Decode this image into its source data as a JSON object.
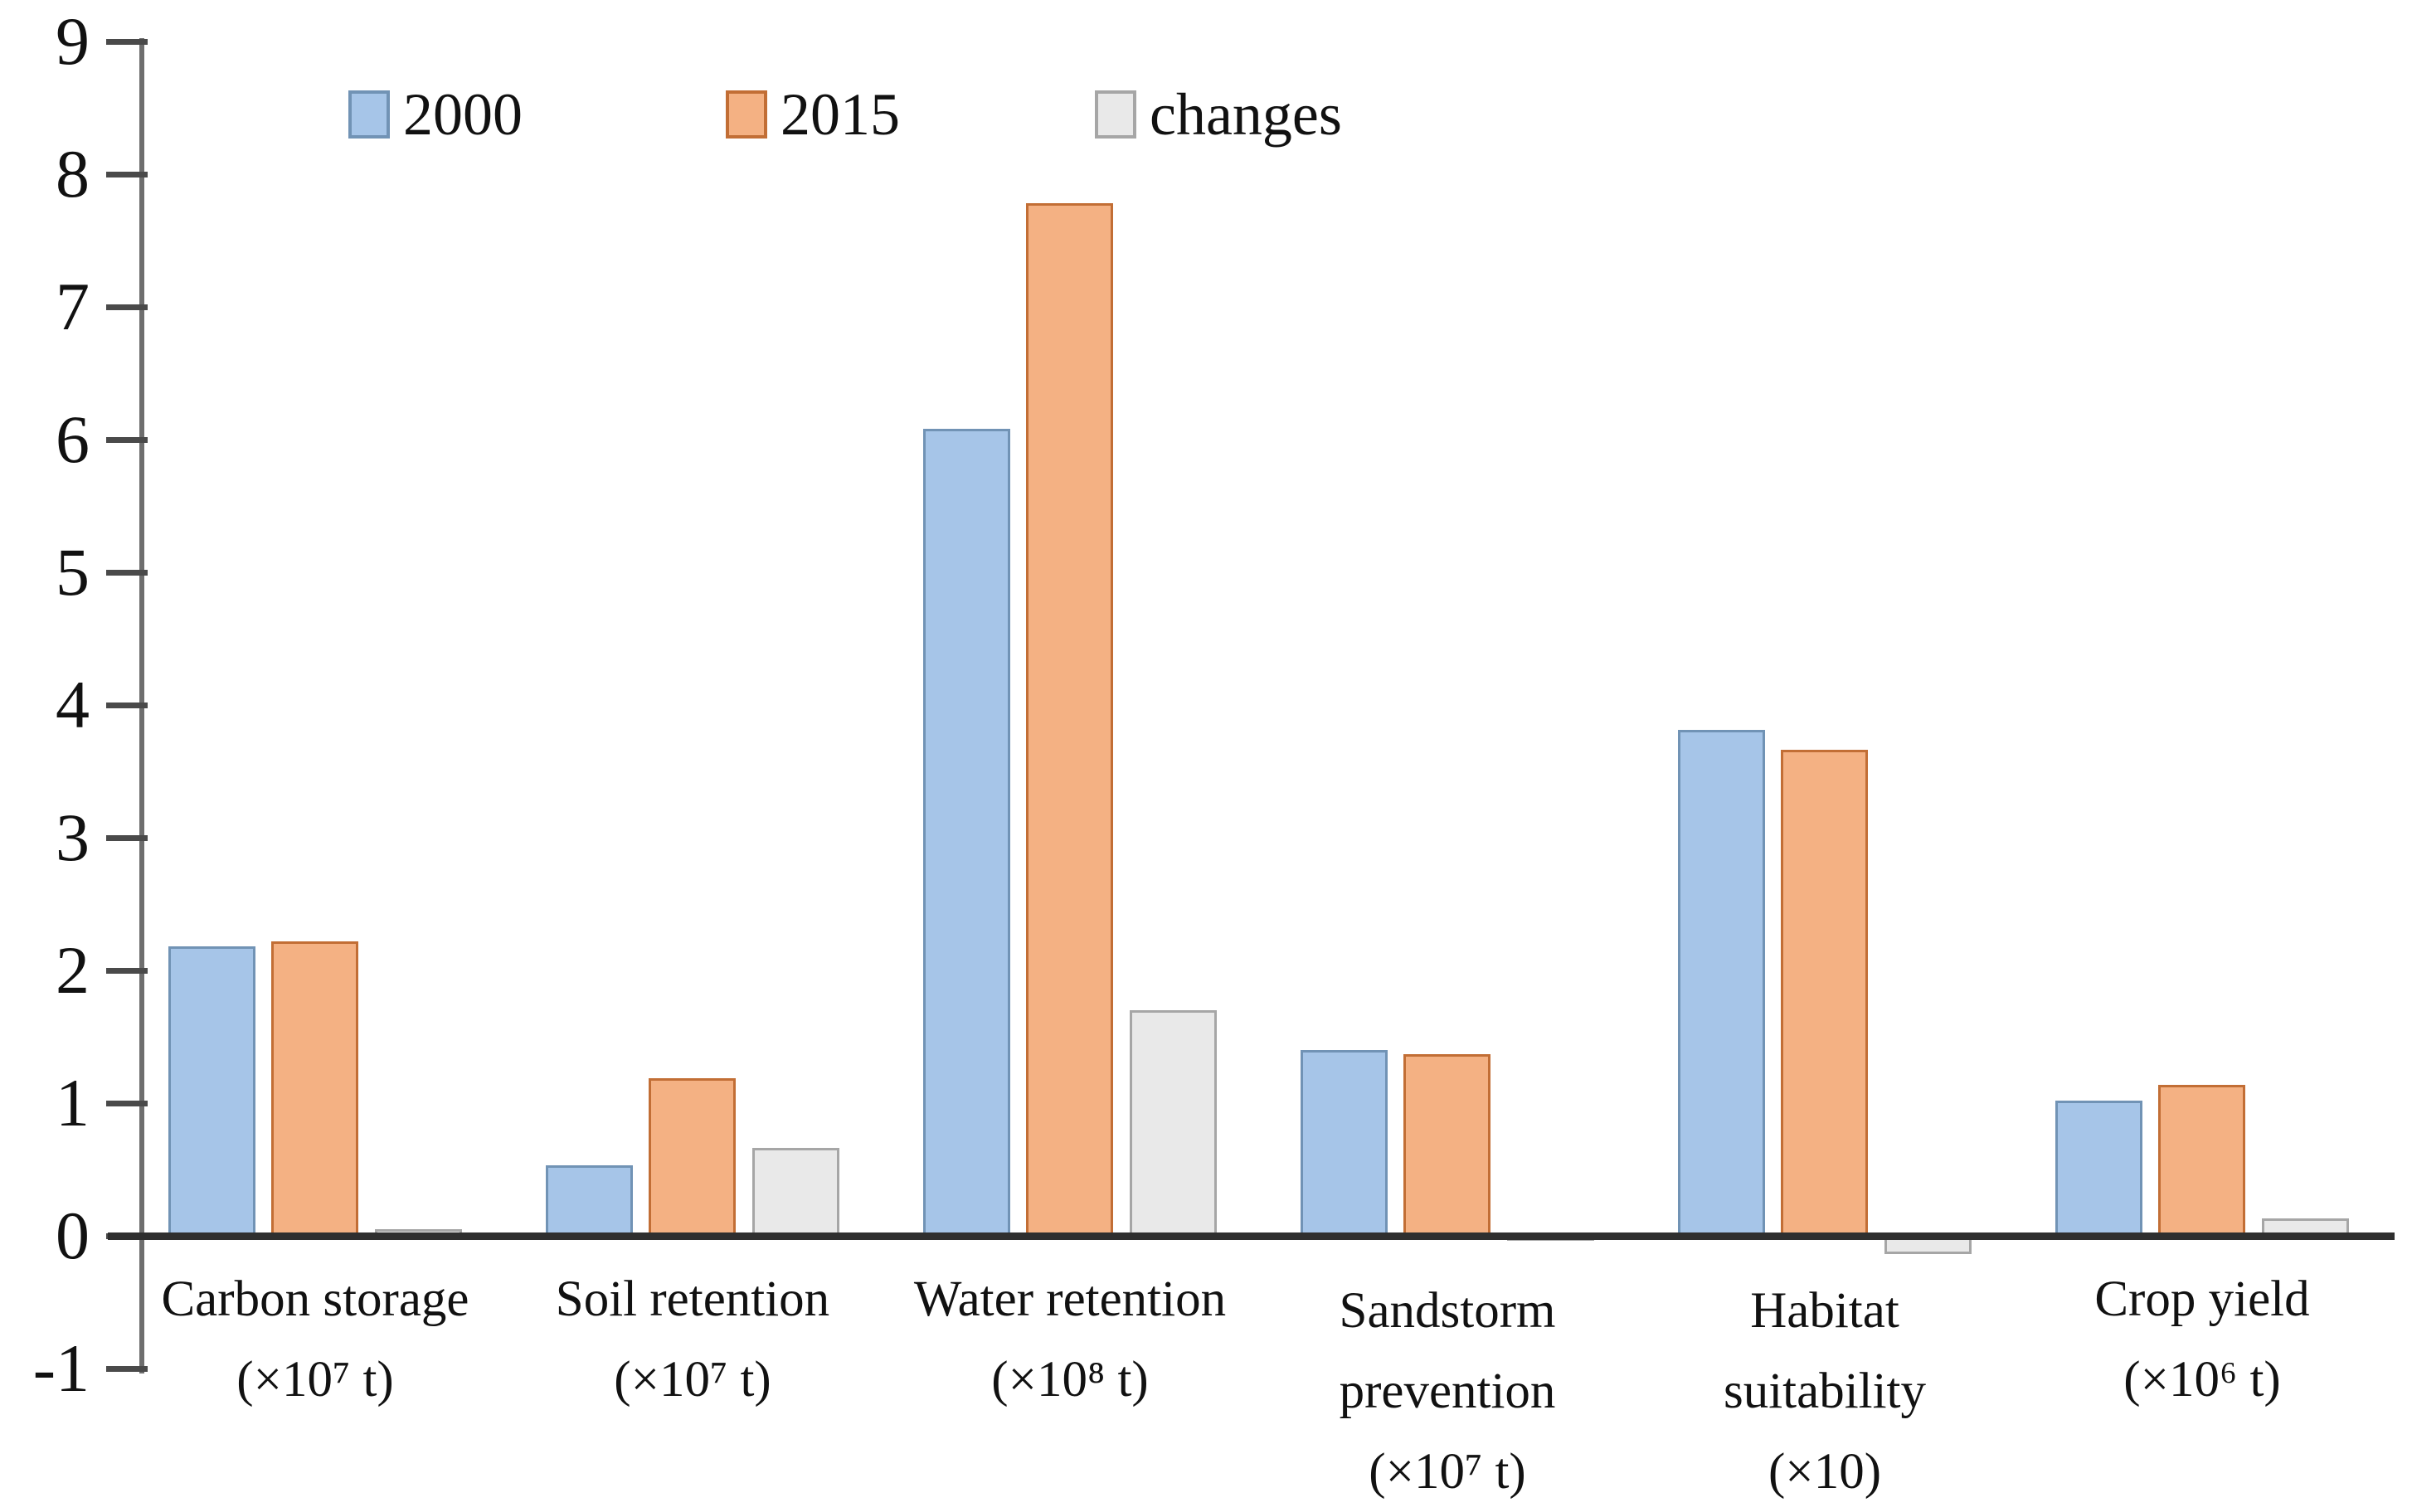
{
  "chart_data": {
    "type": "bar",
    "title": "",
    "xlabel": "",
    "ylabel": "",
    "categories": [
      "Carbon storage (×10⁷ t)",
      "Soil retention (×10⁷ t)",
      "Water retention (×10⁸ t)",
      "Sandstorm prevention (×10⁷ t)",
      "Habitat suitability (×10)",
      "Crop yield (×10⁶ t)"
    ],
    "category_label_lines": [
      [
        "Carbon storage",
        "(×10⁷ t)"
      ],
      [
        "Soil retention",
        "(×10⁷ t)"
      ],
      [
        "Water retention",
        "(×10⁸ t)"
      ],
      [
        "Sandstorm",
        "prevention",
        "(×10⁷ t)"
      ],
      [
        "Habitat",
        "suitability",
        "(×10)"
      ],
      [
        "Crop yield",
        "(×10⁶ t)"
      ]
    ],
    "series": [
      {
        "name": "2000",
        "fill": "#A6C5E8",
        "border": "#7193B5",
        "values": [
          2.18,
          0.53,
          6.08,
          1.4,
          3.81,
          1.02
        ]
      },
      {
        "name": "2015",
        "fill": "#F4B183",
        "border": "#C26E35",
        "values": [
          2.22,
          1.19,
          7.78,
          1.37,
          3.66,
          1.14
        ]
      },
      {
        "name": "changes",
        "fill": "#E9E9E9",
        "border": "#A6A6A6",
        "values": [
          0.05,
          0.66,
          1.7,
          -0.04,
          -0.14,
          0.13
        ]
      }
    ],
    "ylim": [
      -1,
      9
    ],
    "ytick_values": [
      9,
      8,
      7,
      6,
      5,
      4,
      3,
      2,
      1,
      0,
      -1
    ],
    "grid": false,
    "legend_position": "top-left"
  },
  "colors": {
    "axis_line": "#6E6E6E",
    "baseline": "#2F2F2F",
    "tick": "#4A4A4A",
    "text": "#111111",
    "background": "#FFFFFF"
  }
}
